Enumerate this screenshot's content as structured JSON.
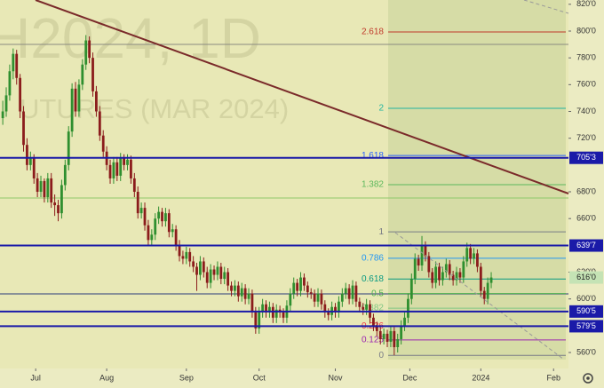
{
  "chart_data": {
    "type": "candlestick",
    "watermark_title": "H2024, 1D",
    "watermark_subtitle": "UTURES (MAR 2024)",
    "up_color": "#2f8f2f",
    "down_color": "#8b1c1c",
    "ylim": [
      533.5,
      823.2
    ],
    "yticks": [
      {
        "value": 820,
        "label": "820'0"
      },
      {
        "value": 800,
        "label": "800'0"
      },
      {
        "value": 780,
        "label": "780'0"
      },
      {
        "value": 760,
        "label": "760'0"
      },
      {
        "value": 740,
        "label": "740'0"
      },
      {
        "value": 720,
        "label": "720'0"
      },
      {
        "value": 680,
        "label": "680'0"
      },
      {
        "value": 660,
        "label": "660'0"
      },
      {
        "value": 620,
        "label": "620'0"
      },
      {
        "value": 600,
        "label": "600'0"
      },
      {
        "value": 560,
        "label": "560'0"
      }
    ],
    "xlim": [
      -0.8,
      163.3
    ],
    "xticks": [
      {
        "value": 9.5,
        "label": "Jul"
      },
      {
        "value": 30,
        "label": "Aug"
      },
      {
        "value": 53,
        "label": "Sep"
      },
      {
        "value": 74,
        "label": "Oct"
      },
      {
        "value": 96,
        "label": "Nov"
      },
      {
        "value": 117.5,
        "label": "Dec"
      },
      {
        "value": 138,
        "label": "2024"
      },
      {
        "value": 159,
        "label": "Feb"
      }
    ],
    "levels": [
      {
        "value": 705.375,
        "label": "705'3",
        "color": "#1a1aa8"
      },
      {
        "value": 639.875,
        "label": "639'7",
        "color": "#1a1aa8"
      },
      {
        "value": 590.625,
        "label": "590'5",
        "color": "#1a1aa8"
      },
      {
        "value": 579.625,
        "label": "579'5",
        "color": "#1a1aa8"
      }
    ],
    "last_price": {
      "value": 616,
      "label": "616'0",
      "color": "#c5e3b5"
    },
    "fib": [
      {
        "ratio": 2.618,
        "price": 799.3,
        "color": "#c0392b"
      },
      {
        "ratio": 2,
        "price": 742.3,
        "color": "#22b5a0"
      },
      {
        "ratio": 1.618,
        "price": 707.1,
        "color": "#2962ff"
      },
      {
        "ratio": 1.382,
        "price": 685.3,
        "color": "#5cb85c"
      },
      {
        "ratio": 1,
        "price": 650.1,
        "color": "#787b86"
      },
      {
        "ratio": 0.786,
        "price": 630.4,
        "color": "#2196f3"
      },
      {
        "ratio": 0.618,
        "price": 614.9,
        "color": "#089981"
      },
      {
        "ratio": 0.5,
        "price": 604.0,
        "color": "#4caf50"
      },
      {
        "ratio": 0.382,
        "price": 593.1,
        "color": "#81c784"
      },
      {
        "ratio": 0.236,
        "price": 579.7,
        "color": "#f23645"
      },
      {
        "ratio": 0.125,
        "price": 569.4,
        "color": "#9c27b0"
      },
      {
        "ratio": 0,
        "price": 557.9,
        "color": "#787b86"
      }
    ],
    "ohlc": [
      [
        735,
        748,
        730,
        740
      ],
      [
        740,
        758,
        736,
        752
      ],
      [
        752,
        775,
        748,
        770
      ],
      [
        770,
        787,
        764,
        783
      ],
      [
        783,
        786,
        760,
        765
      ],
      [
        765,
        768,
        735,
        740
      ],
      [
        740,
        744,
        710,
        715
      ],
      [
        715,
        720,
        696,
        700
      ],
      [
        700,
        710,
        696,
        705
      ],
      [
        705,
        708,
        686,
        690
      ],
      [
        690,
        694,
        676,
        680
      ],
      [
        680,
        692,
        676,
        688
      ],
      [
        688,
        690,
        672,
        676
      ],
      [
        676,
        694,
        672,
        690
      ],
      [
        690,
        694,
        668,
        672
      ],
      [
        672,
        678,
        662,
        670
      ],
      [
        670,
        674,
        658,
        664
      ],
      [
        664,
        689,
        660,
        685
      ],
      [
        685,
        704,
        681,
        700
      ],
      [
        700,
        729,
        696,
        725
      ],
      [
        725,
        761,
        721,
        757
      ],
      [
        757,
        762,
        736,
        740
      ],
      [
        740,
        764,
        736,
        760
      ],
      [
        760,
        779,
        756,
        775
      ],
      [
        775,
        797,
        771,
        793
      ],
      [
        793,
        796,
        776,
        780
      ],
      [
        780,
        784,
        751,
        755
      ],
      [
        755,
        759,
        736,
        740
      ],
      [
        740,
        744,
        718,
        722
      ],
      [
        722,
        726,
        706,
        710
      ],
      [
        710,
        714,
        696,
        700
      ],
      [
        700,
        704,
        686,
        690
      ],
      [
        690,
        706,
        686,
        702
      ],
      [
        702,
        706,
        688,
        692
      ],
      [
        692,
        709,
        688,
        705
      ],
      [
        705,
        708,
        696,
        700
      ],
      [
        700,
        708,
        696,
        704
      ],
      [
        704,
        707,
        686,
        690
      ],
      [
        690,
        694,
        676,
        680
      ],
      [
        680,
        684,
        660,
        664
      ],
      [
        664,
        672,
        660,
        668
      ],
      [
        668,
        672,
        651,
        655
      ],
      [
        655,
        659,
        640,
        644
      ],
      [
        644,
        652,
        640,
        648
      ],
      [
        648,
        664,
        644,
        660
      ],
      [
        660,
        669,
        656,
        665
      ],
      [
        665,
        668,
        654,
        658
      ],
      [
        658,
        668,
        654,
        664
      ],
      [
        664,
        667,
        646,
        650
      ],
      [
        650,
        656,
        646,
        652
      ],
      [
        652,
        655,
        636,
        640
      ],
      [
        640,
        644,
        628,
        632
      ],
      [
        632,
        636,
        626,
        630
      ],
      [
        630,
        639,
        626,
        635
      ],
      [
        635,
        638,
        624,
        628
      ],
      [
        628,
        632,
        620,
        624
      ],
      [
        624,
        627,
        606,
        618
      ],
      [
        618,
        632,
        614,
        628
      ],
      [
        628,
        631,
        616,
        620
      ],
      [
        620,
        624,
        608,
        612
      ],
      [
        612,
        626,
        608,
        622
      ],
      [
        622,
        625,
        614,
        618
      ],
      [
        618,
        628,
        614,
        624
      ],
      [
        624,
        627,
        611,
        615
      ],
      [
        615,
        624,
        611,
        620
      ],
      [
        620,
        623,
        606,
        610
      ],
      [
        610,
        613,
        602,
        606
      ],
      [
        606,
        614,
        602,
        610
      ],
      [
        610,
        613,
        598,
        602
      ],
      [
        602,
        612,
        598,
        608
      ],
      [
        608,
        611,
        596,
        600
      ],
      [
        600,
        608,
        596,
        604
      ],
      [
        604,
        607,
        586,
        590
      ],
      [
        590,
        594,
        574,
        578
      ],
      [
        578,
        594,
        574,
        590
      ],
      [
        590,
        600,
        586,
        596
      ],
      [
        596,
        599,
        586,
        590
      ],
      [
        590,
        598,
        586,
        594
      ],
      [
        594,
        597,
        582,
        586
      ],
      [
        586,
        596,
        582,
        592
      ],
      [
        592,
        595,
        586,
        590
      ],
      [
        590,
        593,
        582,
        586
      ],
      [
        586,
        599,
        582,
        595
      ],
      [
        595,
        608,
        591,
        604
      ],
      [
        604,
        616,
        600,
        612
      ],
      [
        612,
        615,
        602,
        606
      ],
      [
        606,
        620,
        602,
        616
      ],
      [
        616,
        619,
        606,
        610
      ],
      [
        610,
        613,
        601,
        605
      ],
      [
        605,
        608,
        600,
        604
      ],
      [
        604,
        607,
        594,
        598
      ],
      [
        598,
        608,
        594,
        604
      ],
      [
        604,
        607,
        592,
        596
      ],
      [
        596,
        599,
        586,
        590
      ],
      [
        590,
        593,
        584,
        588
      ],
      [
        588,
        598,
        584,
        594
      ],
      [
        594,
        597,
        586,
        590
      ],
      [
        590,
        602,
        586,
        598
      ],
      [
        598,
        608,
        594,
        604
      ],
      [
        604,
        612,
        600,
        608
      ],
      [
        608,
        611,
        596,
        600
      ],
      [
        600,
        614,
        596,
        610
      ],
      [
        610,
        613,
        594,
        598
      ],
      [
        598,
        601,
        590,
        594
      ],
      [
        594,
        597,
        588,
        592
      ],
      [
        592,
        600,
        588,
        596
      ],
      [
        596,
        599,
        582,
        586
      ],
      [
        586,
        589,
        576,
        580
      ],
      [
        580,
        583,
        572,
        576
      ],
      [
        576,
        579,
        566,
        570
      ],
      [
        570,
        578,
        566,
        574
      ],
      [
        574,
        577,
        564,
        568
      ],
      [
        568,
        580,
        564,
        576
      ],
      [
        576,
        579,
        558,
        564
      ],
      [
        564,
        574,
        560,
        570
      ],
      [
        570,
        584,
        566,
        580
      ],
      [
        580,
        590,
        576,
        586
      ],
      [
        586,
        604,
        582,
        600
      ],
      [
        600,
        619,
        596,
        615
      ],
      [
        615,
        634,
        611,
        630
      ],
      [
        630,
        633,
        621,
        625
      ],
      [
        625,
        647,
        621,
        640
      ],
      [
        640,
        643,
        628,
        632
      ],
      [
        632,
        635,
        616,
        620
      ],
      [
        620,
        623,
        608,
        612
      ],
      [
        612,
        628,
        608,
        624
      ],
      [
        624,
        627,
        610,
        614
      ],
      [
        614,
        624,
        610,
        620
      ],
      [
        620,
        630,
        616,
        626
      ],
      [
        626,
        629,
        614,
        618
      ],
      [
        618,
        621,
        610,
        614
      ],
      [
        614,
        624,
        610,
        620
      ],
      [
        620,
        623,
        612,
        616
      ],
      [
        616,
        632,
        612,
        628
      ],
      [
        628,
        642,
        624,
        638
      ],
      [
        638,
        641,
        626,
        630
      ],
      [
        630,
        638,
        626,
        634
      ],
      [
        634,
        637,
        620,
        624
      ],
      [
        624,
        627,
        602,
        606
      ],
      [
        606,
        609,
        596,
        600
      ],
      [
        600,
        616,
        596,
        612
      ],
      [
        612,
        620,
        608,
        616
      ]
    ]
  }
}
